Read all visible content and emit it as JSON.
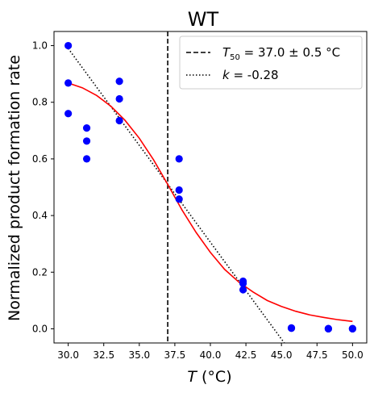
{
  "chart_data": {
    "type": "scatter",
    "title": "WT",
    "xlabel_symbol": "T",
    "xlabel_unit": " (°C)",
    "ylabel": "Normalized product formation rate",
    "xlim": [
      29.0,
      51.0
    ],
    "ylim": [
      -0.05,
      1.05
    ],
    "xticks": [
      30.0,
      32.5,
      35.0,
      37.5,
      40.0,
      42.5,
      45.0,
      47.5,
      50.0
    ],
    "xtick_labels": [
      "30.0",
      "32.5",
      "35.0",
      "37.5",
      "40.0",
      "42.5",
      "45.0",
      "47.5",
      "50.0"
    ],
    "yticks": [
      0.0,
      0.2,
      0.4,
      0.6,
      0.8,
      1.0
    ],
    "ytick_labels": [
      "0.0",
      "0.2",
      "0.4",
      "0.6",
      "0.8",
      "1.0"
    ],
    "grid": false,
    "legend_position": "top-right",
    "colors": {
      "points": "#0000ff",
      "fit": "#ff0000",
      "t50_line": "#000000",
      "slope_line": "#000000"
    },
    "points": {
      "x": [
        30.0,
        30.0,
        30.0,
        31.3,
        31.3,
        31.3,
        33.6,
        33.6,
        33.6,
        37.8,
        37.8,
        37.8,
        42.3,
        42.3,
        42.3,
        45.7,
        45.7,
        48.3,
        48.3,
        50.0,
        50.0
      ],
      "y": [
        1.0,
        0.868,
        0.76,
        0.709,
        0.663,
        0.6,
        0.874,
        0.812,
        0.735,
        0.6,
        0.49,
        0.458,
        0.168,
        0.16,
        0.138,
        0.003,
        0.002,
        0.001,
        0.0,
        0.001,
        0.0
      ]
    },
    "fit_curve": {
      "x": [
        30.0,
        31.0,
        32.0,
        33.0,
        34.0,
        35.0,
        36.0,
        37.0,
        38.0,
        39.0,
        40.0,
        41.0,
        42.0,
        43.0,
        44.0,
        45.0,
        46.0,
        47.0,
        48.0,
        49.0,
        50.0
      ],
      "y": [
        0.868,
        0.851,
        0.824,
        0.786,
        0.736,
        0.673,
        0.597,
        0.51,
        0.42,
        0.34,
        0.27,
        0.21,
        0.165,
        0.13,
        0.1,
        0.079,
        0.062,
        0.049,
        0.04,
        0.032,
        0.026
      ]
    },
    "t50_line": {
      "x": 37.0
    },
    "slope_line": {
      "x": [
        30.0,
        45.2
      ],
      "y": [
        0.99,
        -0.05
      ]
    },
    "legend": [
      {
        "kind": "t50",
        "symbol": "T",
        "subscript": "50",
        "text": " = 37.0 ± 0.5 °C"
      },
      {
        "kind": "slope",
        "symbol": "k",
        "text": " = -0.28"
      }
    ]
  }
}
